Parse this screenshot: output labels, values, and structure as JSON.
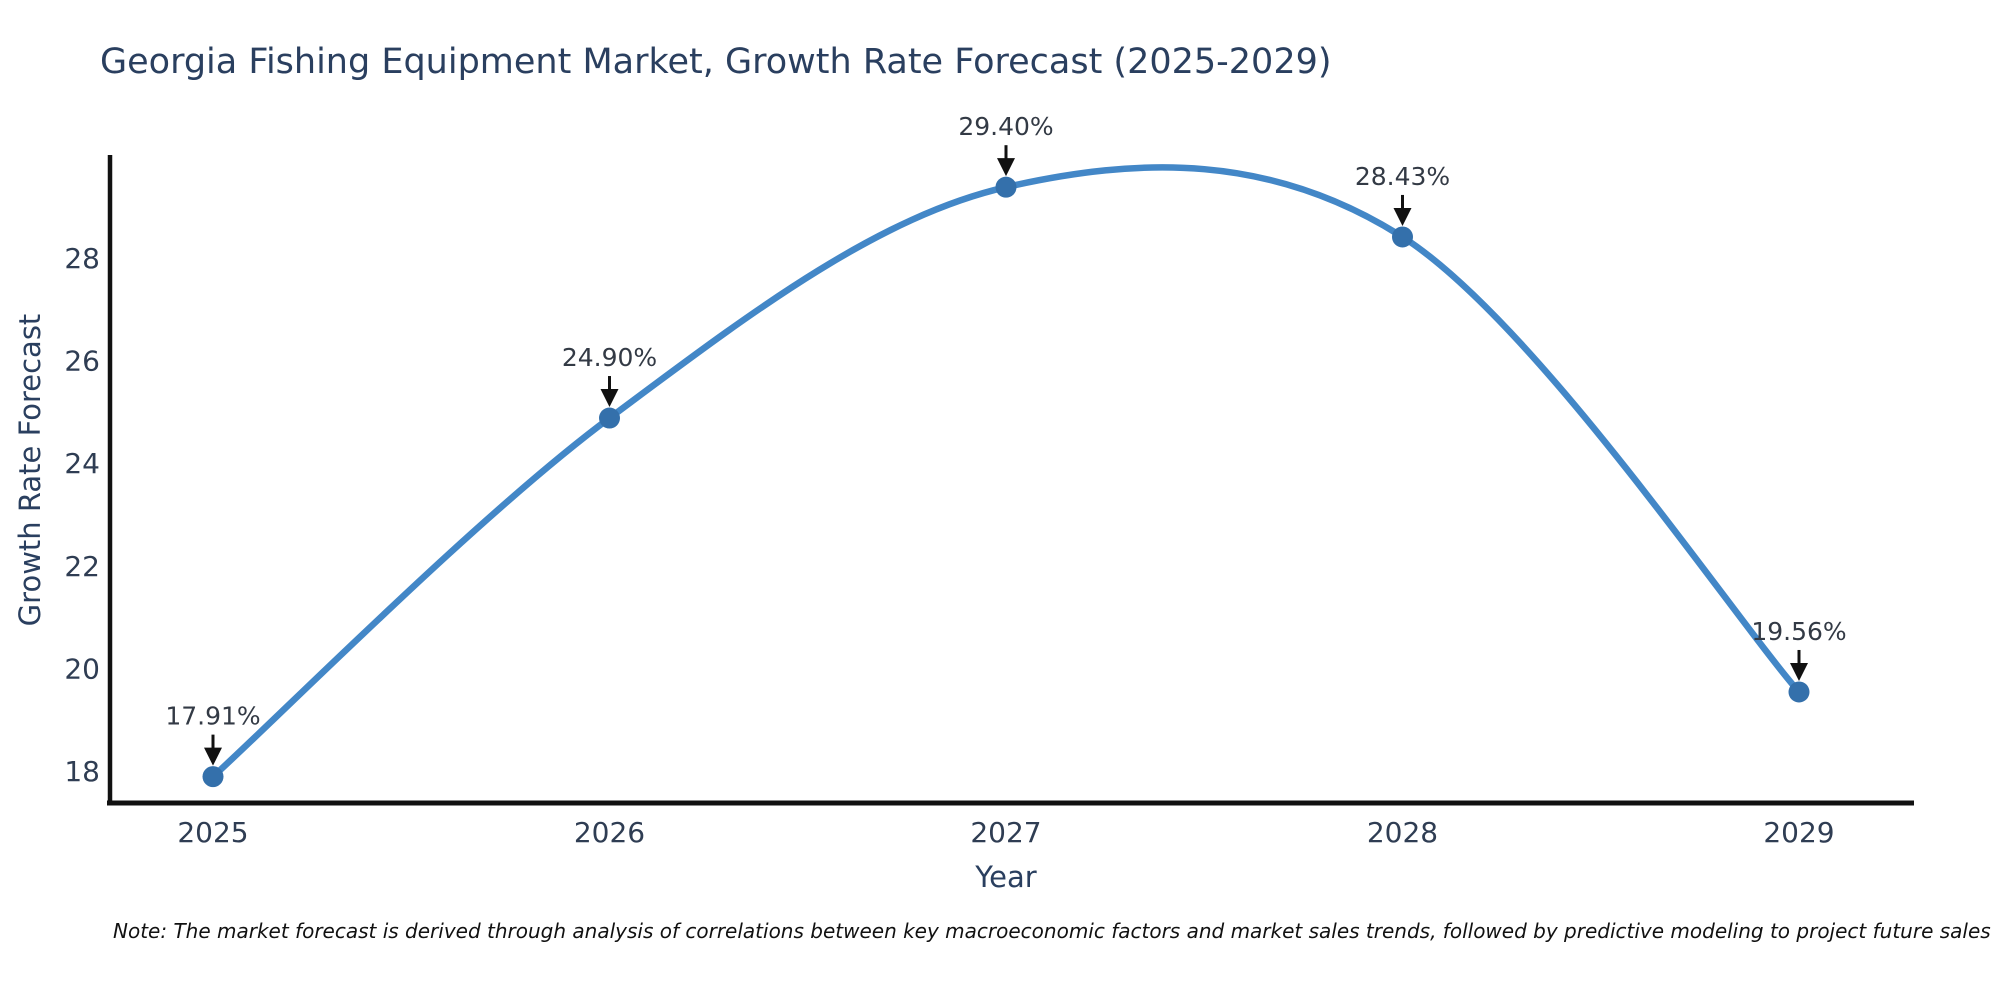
{
  "title": "Georgia Fishing Equipment Market, Growth Rate Forecast (2025-2029)",
  "note": "Note: The market forecast is derived through analysis of correlations between key macroeconomic factors and market sales trends, followed by predictive modeling to project future sales",
  "chart_data": {
    "type": "line",
    "title": "Georgia Fishing Equipment Market, Growth Rate Forecast (2025-2029)",
    "xlabel": "Year",
    "ylabel": "Growth Rate Forecast",
    "x": [
      2025,
      2026,
      2027,
      2028,
      2029
    ],
    "values": [
      17.91,
      24.9,
      29.4,
      28.43,
      19.56
    ],
    "point_labels": [
      "17.91%",
      "24.90%",
      "29.40%",
      "28.43%",
      "19.56%"
    ],
    "x_tick_labels": [
      "2025",
      "2026",
      "2027",
      "2028",
      "2029"
    ],
    "y_tick_values": [
      18,
      20,
      22,
      24,
      26,
      28
    ],
    "xlim": [
      2024.74,
      2029.29
    ],
    "ylim": [
      17.3,
      30.0
    ],
    "line_shape": "spline",
    "grid": false,
    "legend_position": "none",
    "colors": {
      "line": "#4387c7",
      "marker": "#3470ab",
      "axis": "#111111",
      "arrow": "#111111",
      "title_text": "#2a3f5f",
      "axis_text": "#2a3f5f",
      "tick_text": "#2f3d53",
      "annotation_text": "#333a45",
      "note_text": "#111111",
      "background": "#ffffff"
    }
  }
}
